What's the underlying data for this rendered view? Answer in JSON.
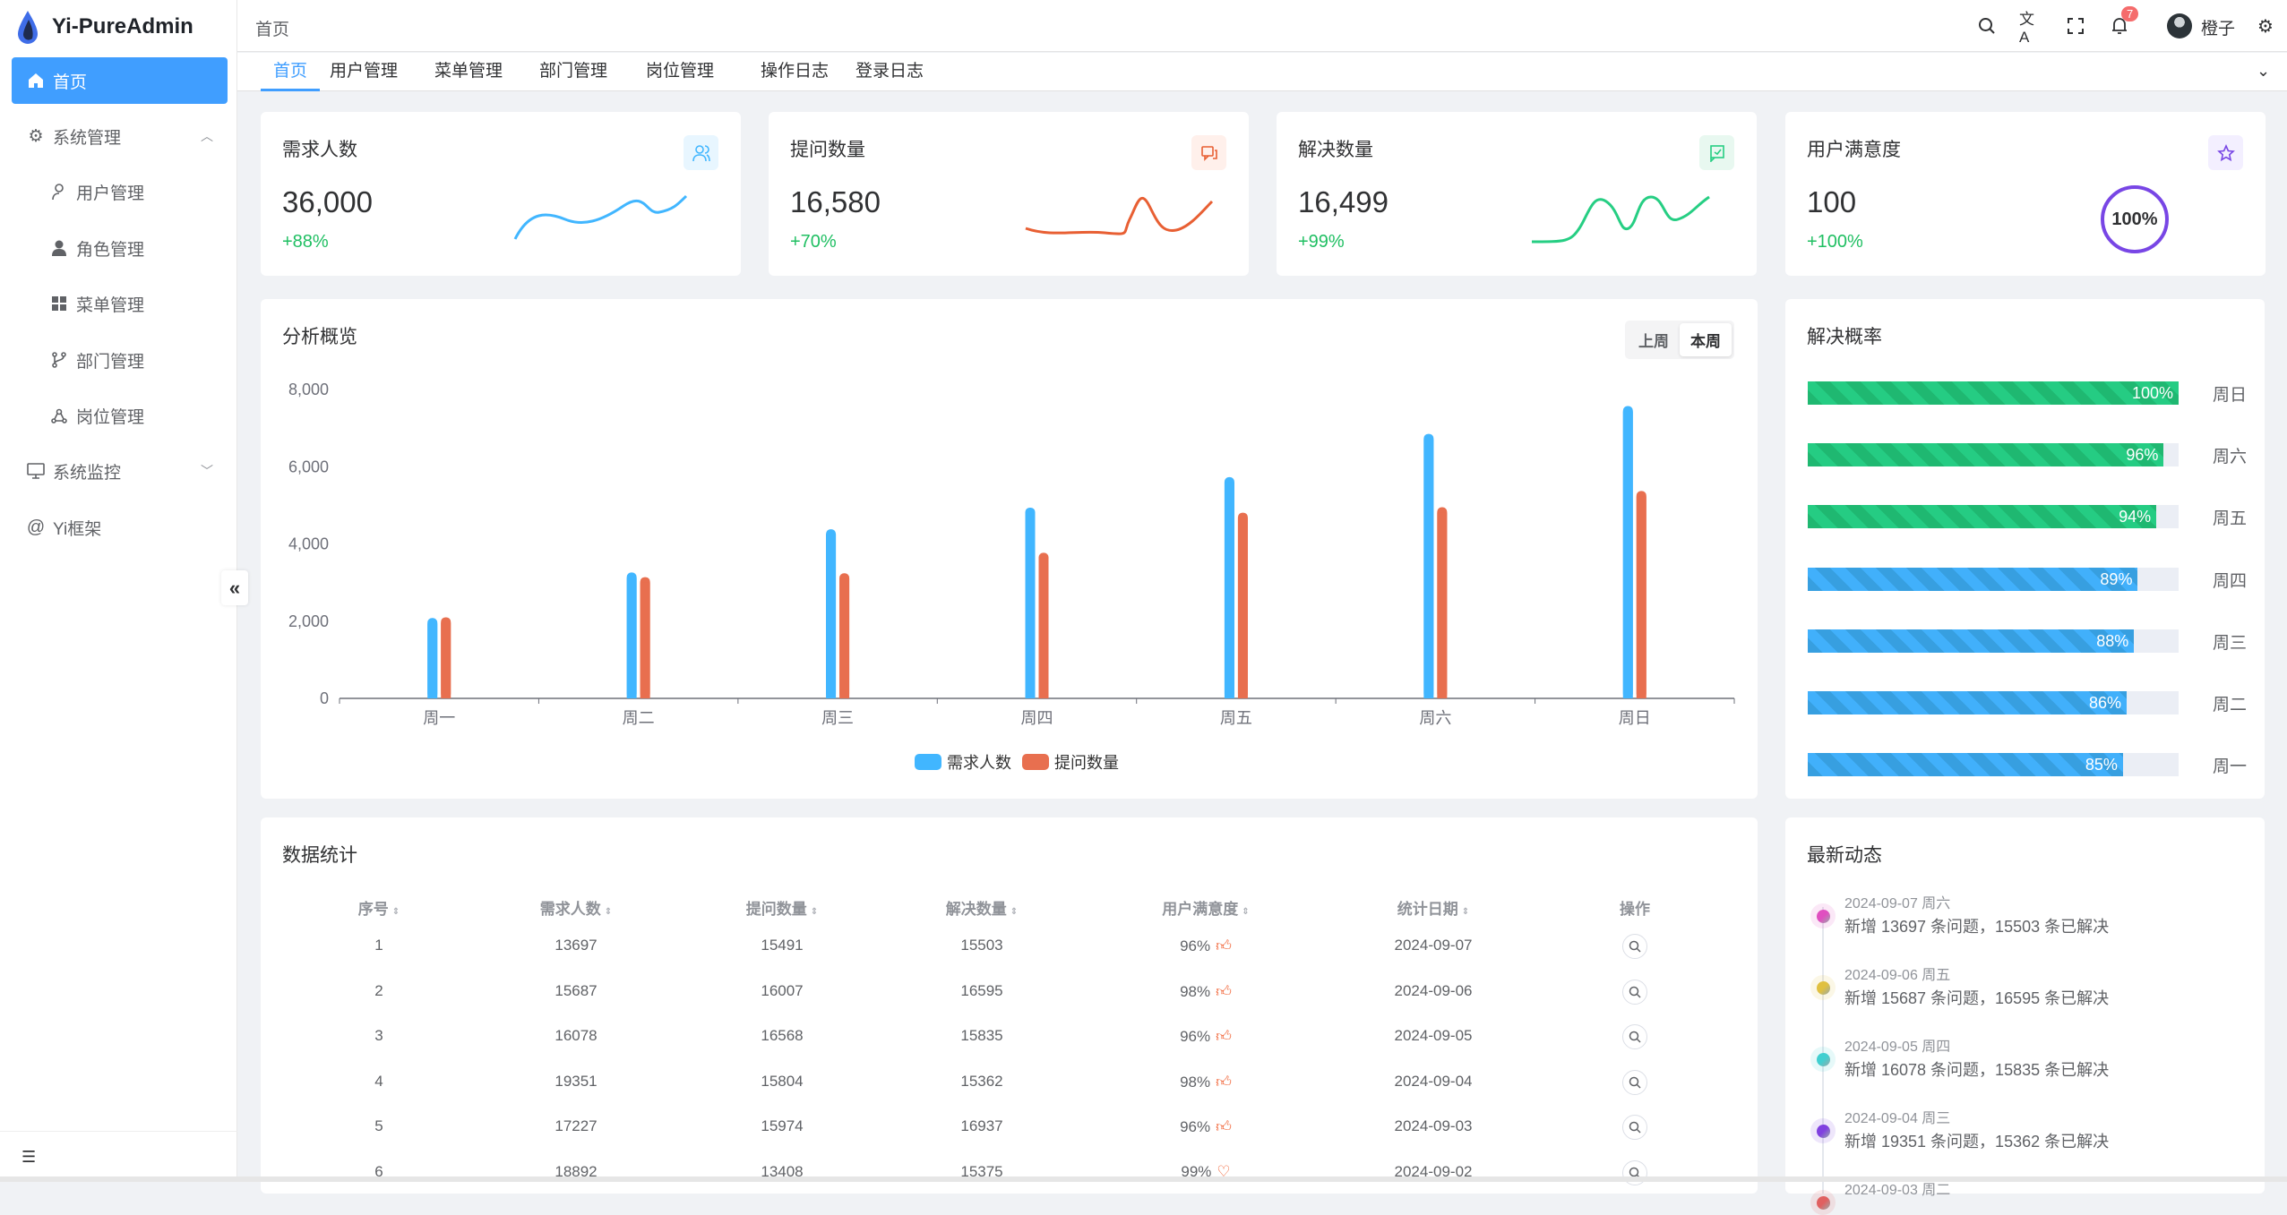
{
  "app": {
    "title": "Yi-PureAdmin"
  },
  "sidebar": {
    "items": [
      {
        "label": "首页",
        "icon": "home-icon",
        "active": true
      },
      {
        "label": "系统管理",
        "icon": "gear-icon",
        "expanded": true
      },
      {
        "label": "用户管理",
        "icon": "user-icon"
      },
      {
        "label": "角色管理",
        "icon": "role-icon"
      },
      {
        "label": "菜单管理",
        "icon": "grid-icon"
      },
      {
        "label": "部门管理",
        "icon": "branch-icon"
      },
      {
        "label": "岗位管理",
        "icon": "network-icon"
      },
      {
        "label": "系统监控",
        "icon": "monitor-icon"
      },
      {
        "label": "Yi框架",
        "icon": "at-icon"
      }
    ]
  },
  "header": {
    "breadcrumb": "首页",
    "notification_count": "7",
    "username": "橙子"
  },
  "tabs": [
    "首页",
    "用户管理",
    "菜单管理",
    "部门管理",
    "岗位管理",
    "操作日志",
    "登录日志"
  ],
  "stats": [
    {
      "title": "需求人数",
      "value": "36,000",
      "change": "+88%",
      "color": "#41b6ff"
    },
    {
      "title": "提问数量",
      "value": "16,580",
      "change": "+70%",
      "color": "#e85f33"
    },
    {
      "title": "解决数量",
      "value": "16,499",
      "change": "+99%",
      "color": "#26ce83"
    },
    {
      "title": "用户满意度",
      "value": "100",
      "change": "+100%",
      "color": "#7846e5",
      "ring": "100%"
    }
  ],
  "overview": {
    "title": "分析概览",
    "seg": [
      "上周",
      "本周"
    ],
    "selected": "本周"
  },
  "chart_data": {
    "type": "bar",
    "categories": [
      "周一",
      "周二",
      "周三",
      "周四",
      "周五",
      "周六",
      "周日"
    ],
    "series": [
      {
        "name": "需求人数",
        "color": "#41b6ff",
        "values": [
          2080,
          3260,
          4380,
          4940,
          5730,
          6850,
          7570
        ]
      },
      {
        "name": "提问数量",
        "color": "#e86f4f",
        "values": [
          2100,
          3140,
          3240,
          3770,
          4810,
          4950,
          5370
        ]
      }
    ],
    "yticks": [
      "0",
      "2,000",
      "4,000",
      "6,000",
      "8,000"
    ],
    "ylim": [
      0,
      8000
    ],
    "legend": "bottom",
    "grid": false
  },
  "rates": {
    "title": "解决概率",
    "items": [
      {
        "day": "周日",
        "value": 100,
        "label": "100%",
        "color": "green"
      },
      {
        "day": "周六",
        "value": 96,
        "label": "96%",
        "color": "green"
      },
      {
        "day": "周五",
        "value": 94,
        "label": "94%",
        "color": "green"
      },
      {
        "day": "周四",
        "value": 89,
        "label": "89%",
        "color": "blue"
      },
      {
        "day": "周三",
        "value": 88,
        "label": "88%",
        "color": "blue"
      },
      {
        "day": "周二",
        "value": 86,
        "label": "86%",
        "color": "blue"
      },
      {
        "day": "周一",
        "value": 85,
        "label": "85%",
        "color": "blue"
      }
    ]
  },
  "table": {
    "title": "数据统计",
    "columns": [
      "序号",
      "需求人数",
      "提问数量",
      "解决数量",
      "用户满意度",
      "统计日期",
      "操作"
    ],
    "rows": [
      [
        "1",
        "13697",
        "15491",
        "15503",
        "96%",
        "2024-09-07"
      ],
      [
        "2",
        "15687",
        "16007",
        "16595",
        "98%",
        "2024-09-06"
      ],
      [
        "3",
        "16078",
        "16568",
        "15835",
        "96%",
        "2024-09-05"
      ],
      [
        "4",
        "19351",
        "15804",
        "15362",
        "98%",
        "2024-09-04"
      ],
      [
        "5",
        "17227",
        "15974",
        "16937",
        "96%",
        "2024-09-03"
      ],
      [
        "6",
        "18892",
        "13408",
        "15375",
        "99%",
        "2024-09-02"
      ]
    ]
  },
  "timeline": {
    "title": "最新动态",
    "items": [
      {
        "date": "2024-09-07 周六",
        "text": "新增 13697 条问题，15503 条已解决",
        "color": "#e04fc0"
      },
      {
        "date": "2024-09-06 周五",
        "text": "新增 15687 条问题，16595 条已解决",
        "color": "#e0c040"
      },
      {
        "date": "2024-09-05 周四",
        "text": "新增 16078 条问题，15835 条已解决",
        "color": "#40cfd0"
      },
      {
        "date": "2024-09-04 周三",
        "text": "新增 19351 条问题，15362 条已解决",
        "color": "#8040e0"
      },
      {
        "date": "2024-09-03 周二",
        "text": "",
        "color": "#e06060"
      }
    ]
  }
}
